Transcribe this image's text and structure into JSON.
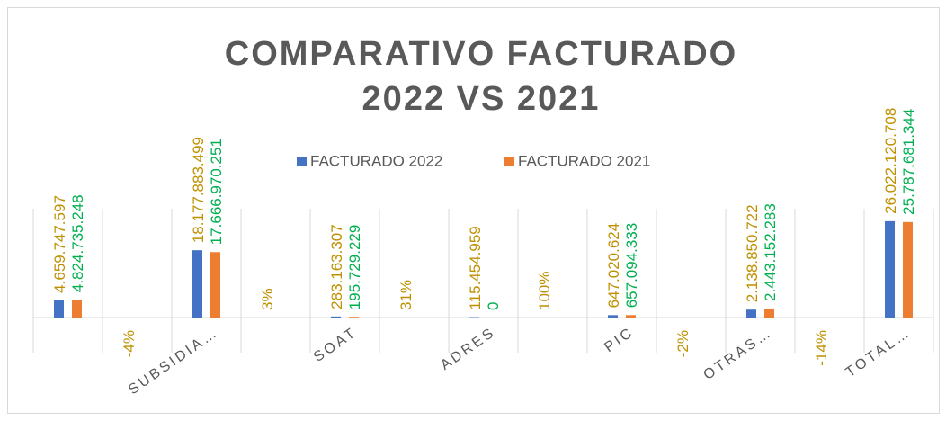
{
  "chart_data": {
    "type": "bar",
    "title": [
      "COMPARATIVO FACTURADO",
      "2022 VS 2021"
    ],
    "categories": [
      null,
      null,
      "SUBSIDIA…",
      null,
      "SOAT",
      null,
      "ADRES",
      null,
      "PIC",
      null,
      "OTRAS…",
      null,
      "TOTAL…"
    ],
    "series": [
      {
        "name": "FACTURADO 2022",
        "color": "#4472c4",
        "label_color": "#bf9000",
        "values": [
          4659747597,
          -0.04,
          18177883499,
          0.03,
          283163307,
          0.31,
          115454959,
          1,
          647020624,
          -0.02,
          2138850722,
          -0.14,
          26022120708
        ],
        "value_labels": [
          "4.659.747.597",
          "-4%",
          "18.177.883.499",
          "3%",
          "283.163.307",
          "31%",
          "115.454.959",
          "100%",
          "647.020.624",
          "-2%",
          "2.138.850.722",
          "-14%",
          "26.022.120.708"
        ]
      },
      {
        "name": "FACTURADO 2021",
        "color": "#ed7d31",
        "label_color": "#00b050",
        "values": [
          4824735248,
          null,
          17666970251,
          null,
          195729229,
          null,
          0,
          null,
          657094333,
          null,
          2443152283,
          null,
          25787681344
        ],
        "value_labels": [
          "4.824.735.248",
          null,
          "17.666.970.251",
          null,
          "195.729.229",
          null,
          "0",
          null,
          "657.094.333",
          null,
          "2.443.152.283",
          null,
          "25.787.681.344"
        ]
      }
    ],
    "ylim": [
      0,
      60000000000
    ],
    "legend": "top"
  }
}
